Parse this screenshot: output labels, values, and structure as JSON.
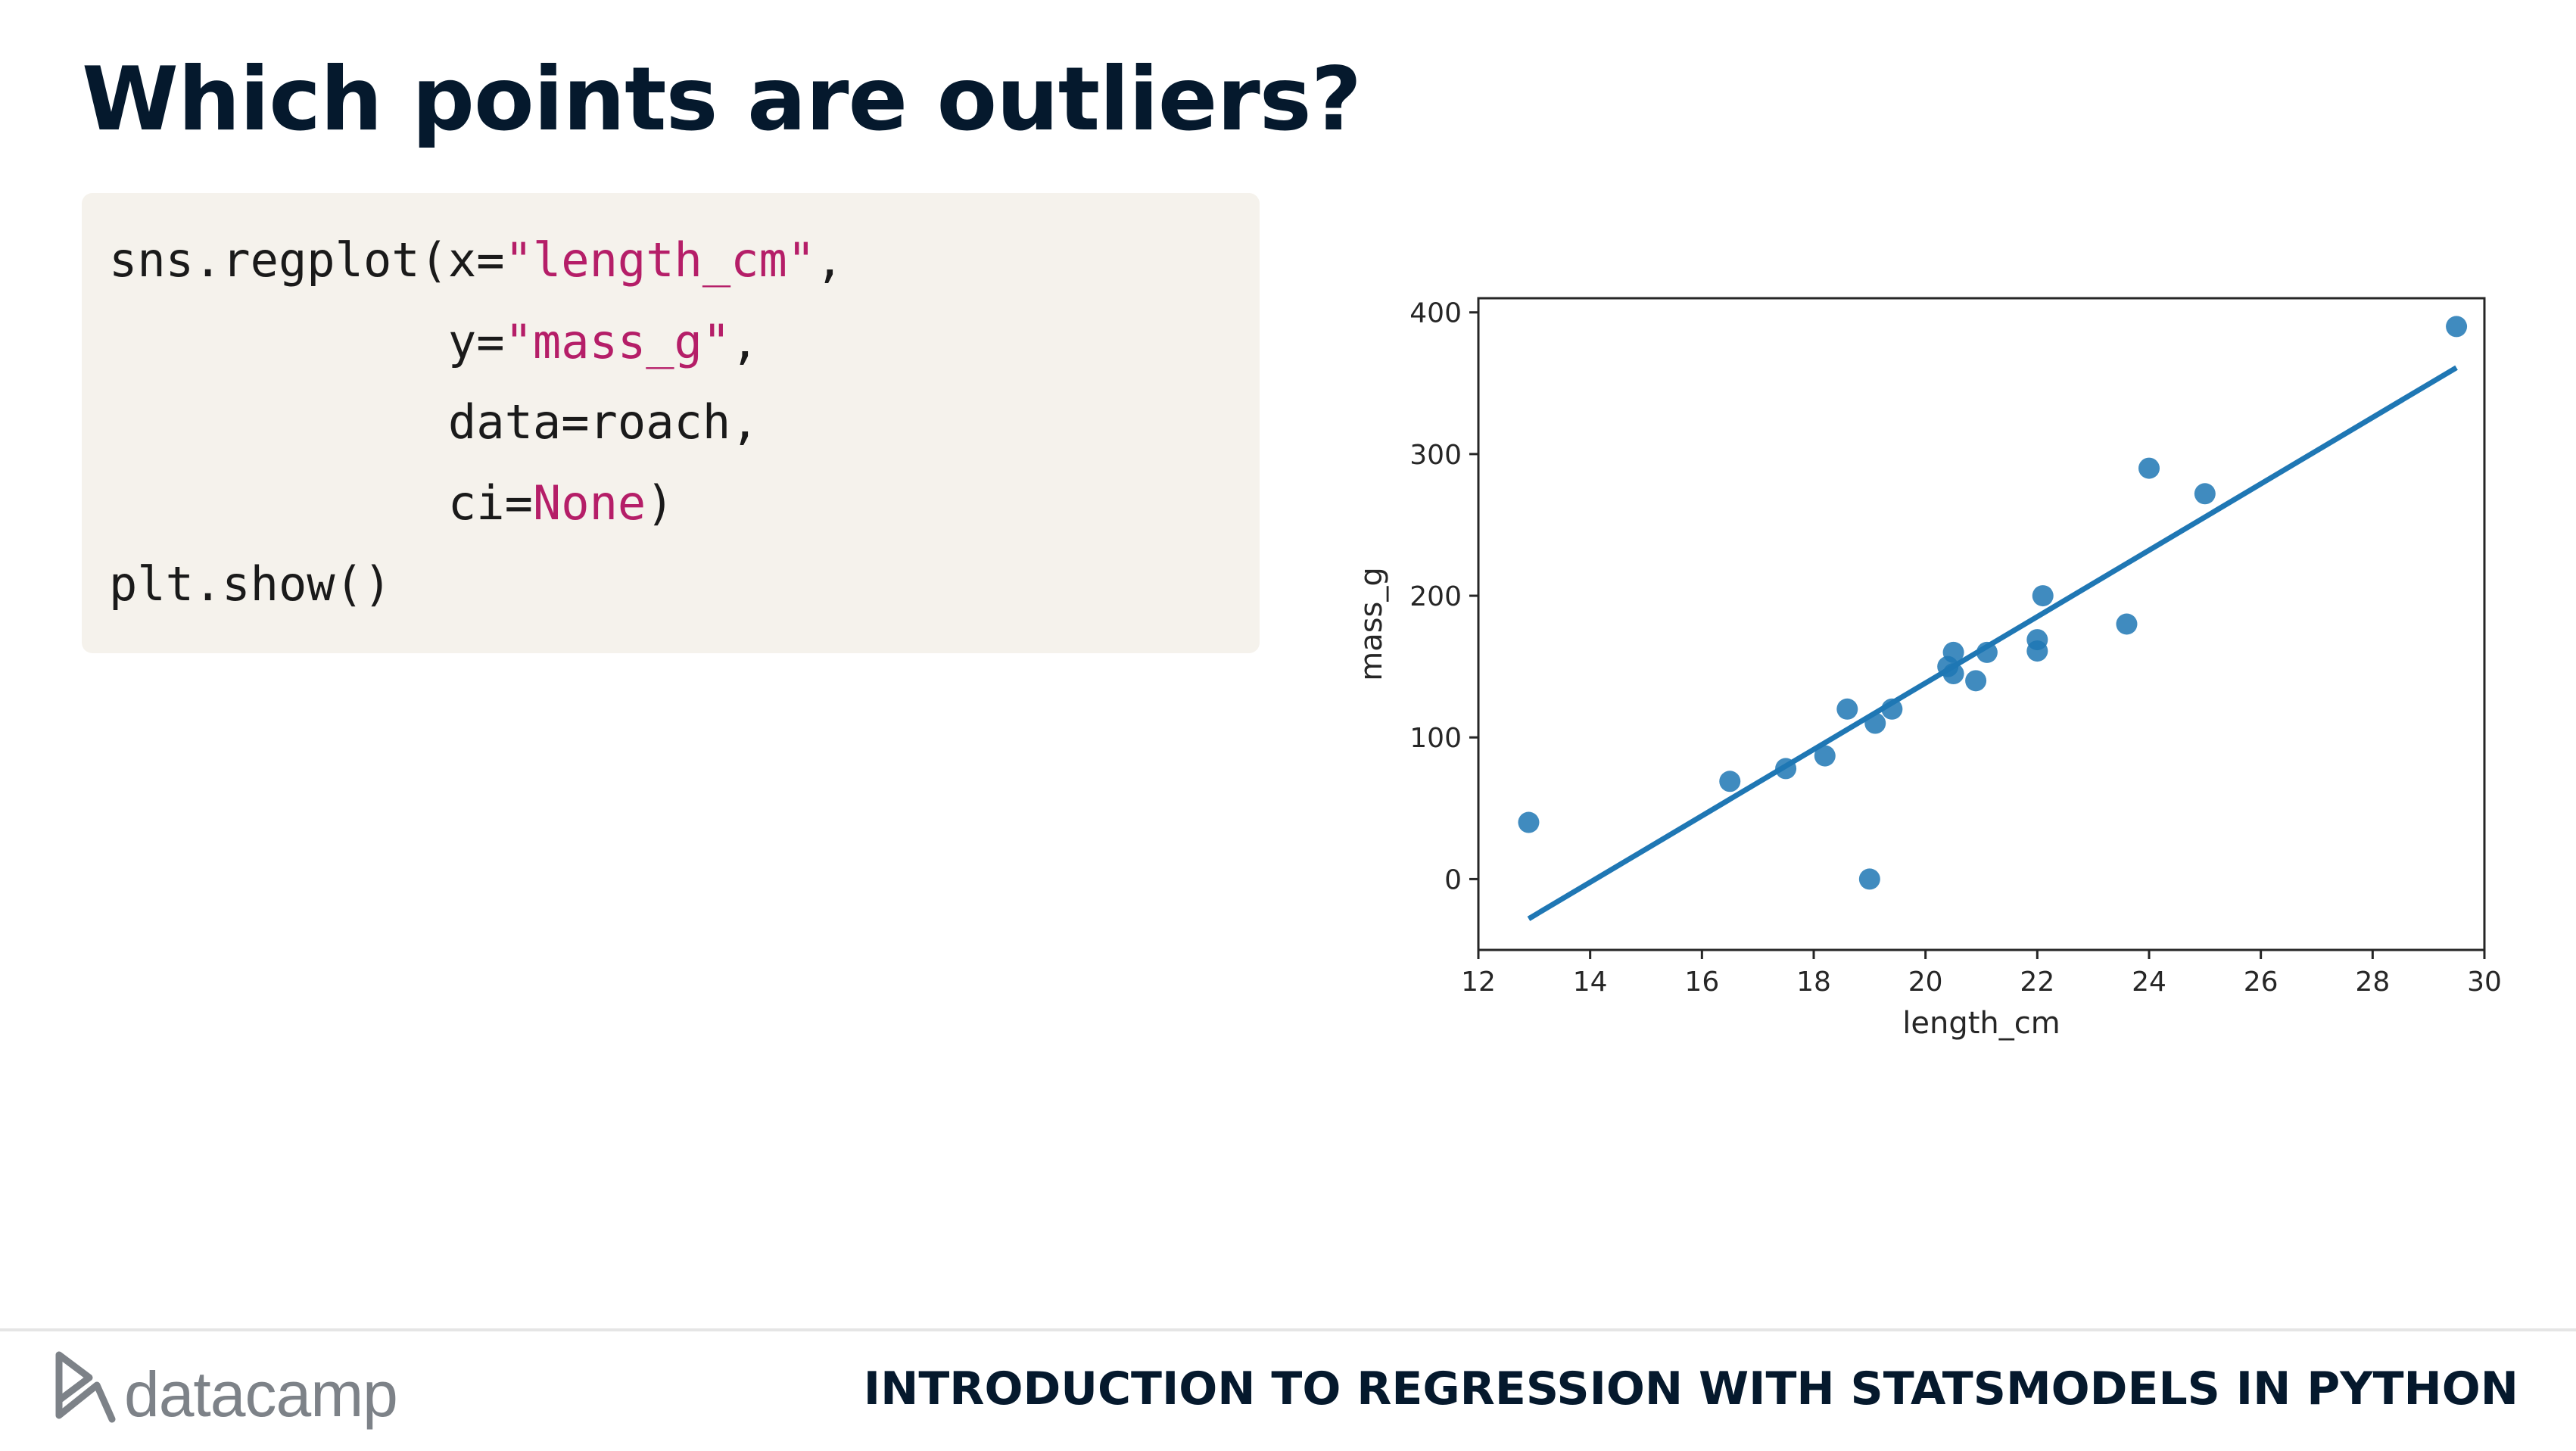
{
  "slide": {
    "title": "Which points are outliers?",
    "course_title": "INTRODUCTION TO REGRESSION WITH STATSMODELS IN PYTHON",
    "logo_text": "datacamp"
  },
  "code": {
    "line1_pre": "sns.regplot(x=",
    "line1_str": "\"length_cm\"",
    "line1_post": ",",
    "line2_pre": "            y=",
    "line2_str": "\"mass_g\"",
    "line2_post": ",",
    "line3": "            data=roach,",
    "line4_pre": "            ci=",
    "line4_kw": "None",
    "line4_post": ")",
    "line5": "plt.show()"
  },
  "colors": {
    "title": "#05192d",
    "code_bg": "#f5f2ec",
    "code_string": "#b51e68",
    "series": "#1f77b4",
    "logo": "#7d8288"
  },
  "chart_data": {
    "type": "scatter",
    "xlabel": "length_cm",
    "ylabel": "mass_g",
    "xlim": [
      12,
      30
    ],
    "ylim": [
      -50,
      410
    ],
    "xticks": [
      12,
      14,
      16,
      18,
      20,
      22,
      24,
      26,
      28,
      30
    ],
    "yticks": [
      0,
      100,
      200,
      300,
      400
    ],
    "grid": false,
    "points": [
      {
        "x": 12.9,
        "y": 40
      },
      {
        "x": 16.5,
        "y": 69
      },
      {
        "x": 17.5,
        "y": 78
      },
      {
        "x": 18.2,
        "y": 87
      },
      {
        "x": 18.6,
        "y": 120
      },
      {
        "x": 19.0,
        "y": 0
      },
      {
        "x": 19.1,
        "y": 110
      },
      {
        "x": 19.4,
        "y": 120
      },
      {
        "x": 20.4,
        "y": 150
      },
      {
        "x": 20.5,
        "y": 145
      },
      {
        "x": 20.5,
        "y": 160
      },
      {
        "x": 20.9,
        "y": 140
      },
      {
        "x": 21.1,
        "y": 160
      },
      {
        "x": 22.0,
        "y": 169
      },
      {
        "x": 22.0,
        "y": 161
      },
      {
        "x": 22.1,
        "y": 200
      },
      {
        "x": 23.6,
        "y": 180
      },
      {
        "x": 24.0,
        "y": 290
      },
      {
        "x": 25.0,
        "y": 272
      },
      {
        "x": 29.5,
        "y": 390
      }
    ],
    "regression_line": {
      "x": [
        12.9,
        29.5
      ],
      "y": [
        -28,
        361
      ]
    }
  }
}
